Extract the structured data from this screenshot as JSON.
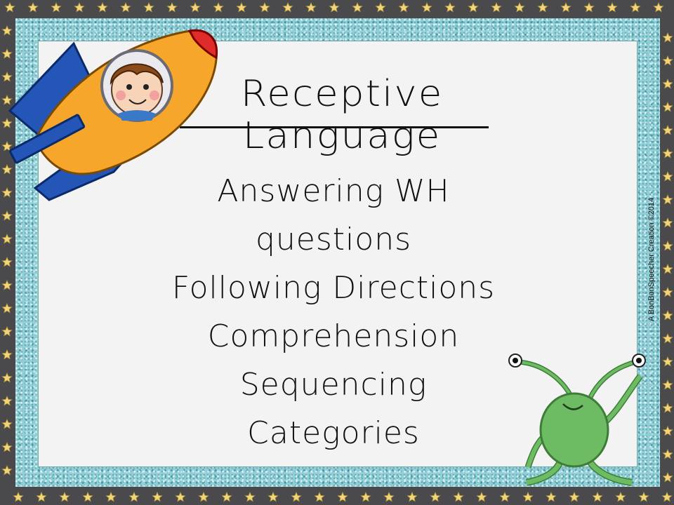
{
  "slide": {
    "title": "Receptive Language",
    "topics": [
      "Answering WH questions",
      "Following Directions",
      "Comprehension",
      "Sequencing",
      "Categories"
    ],
    "credit": "A BonBonSpeecher Creation ©2014"
  },
  "colors": {
    "frame": "#4a4a4c",
    "glitter": "#8fd0d8",
    "card": "#f3f3f4",
    "star": "#f2d57a",
    "rocket_body": "#f6a62b",
    "rocket_fin": "#2456b8",
    "rocket_tip": "#e02b2b",
    "alien": "#6dbb63"
  },
  "icons": [
    "star-icon",
    "rocket-boy-illustration",
    "green-alien-illustration"
  ]
}
